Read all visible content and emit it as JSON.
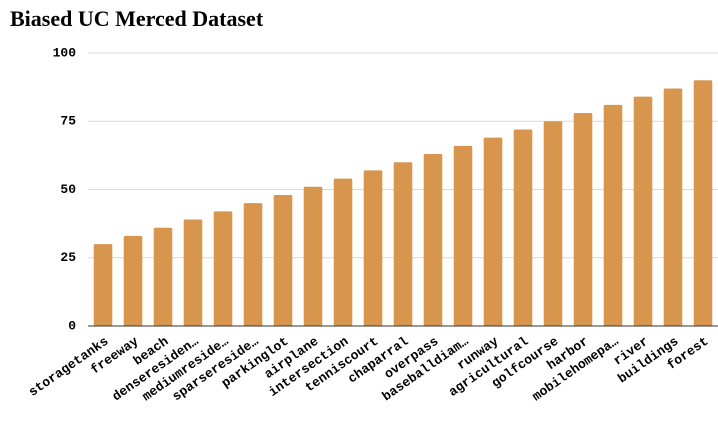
{
  "chart_data": {
    "type": "bar",
    "title": "Biased UC Merced Dataset",
    "categories": [
      "storagetanks",
      "freeway",
      "beach",
      "denseresiden…",
      "mediumreside…",
      "sparsereside…",
      "parkinglot",
      "airplane",
      "intersection",
      "tenniscourt",
      "chaparral",
      "overpass",
      "baseballdiam…",
      "runway",
      "agricultural",
      "golfcourse",
      "harbor",
      "mobilehomepa…",
      "river",
      "buildings",
      "forest"
    ],
    "values": [
      30,
      33,
      36,
      39,
      42,
      45,
      48,
      51,
      54,
      57,
      60,
      63,
      66,
      69,
      72,
      75,
      78,
      81,
      84,
      87,
      90
    ],
    "color": "#d8954e",
    "ylim": [
      0,
      100
    ],
    "yticks": [
      0,
      25,
      50,
      75,
      100
    ],
    "grid": true
  }
}
